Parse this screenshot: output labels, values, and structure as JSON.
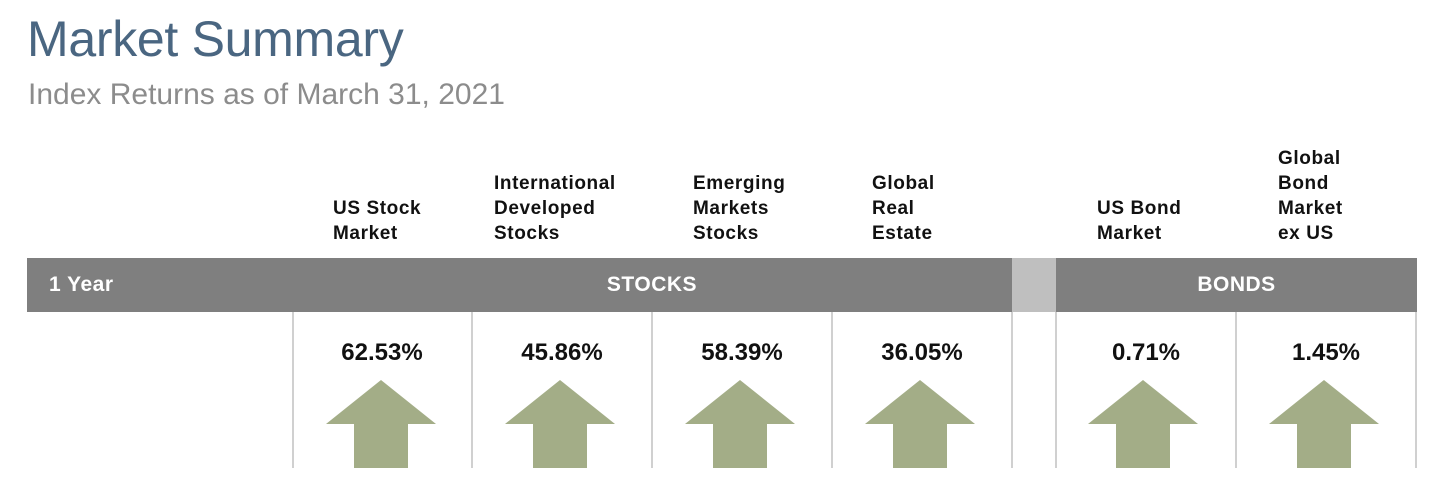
{
  "header": {
    "title": "Market Summary",
    "subtitle": "Index Returns as of March 31, 2021"
  },
  "band": {
    "period": "1 Year",
    "stocks_label": "STOCKS",
    "bonds_label": "BONDS"
  },
  "columns": [
    {
      "label_lines": [
        "US Stock",
        "Market"
      ],
      "value": "62.53%"
    },
    {
      "label_lines": [
        "International",
        "Developed",
        "Stocks"
      ],
      "value": "45.86%"
    },
    {
      "label_lines": [
        "Emerging",
        "Markets",
        "Stocks"
      ],
      "value": "58.39%"
    },
    {
      "label_lines": [
        "Global",
        "Real",
        "Estate"
      ],
      "value": "36.05%"
    },
    {
      "label_lines": [
        "US Bond",
        "Market"
      ],
      "value": "0.71%"
    },
    {
      "label_lines": [
        "Global",
        "Bond",
        "Market",
        "ex US"
      ],
      "value": "1.45%"
    }
  ],
  "colors": {
    "title": "#4a6681",
    "subtitle": "#8c8c8c",
    "band": "#7f7f7f",
    "band_gap": "#bfbfbf",
    "arrow": "#a3ad87",
    "divider": "#d0d0d0"
  },
  "icons": {
    "direction": "up-arrow-icon"
  },
  "chart_data": {
    "type": "table",
    "title": "Market Summary",
    "subtitle": "Index Returns as of March 31, 2021",
    "period": "1 Year",
    "groups": [
      {
        "name": "STOCKS",
        "categories": [
          "US Stock Market",
          "International Developed Stocks",
          "Emerging Markets Stocks",
          "Global Real Estate"
        ]
      },
      {
        "name": "BONDS",
        "categories": [
          "US Bond Market",
          "Global Bond Market ex US"
        ]
      }
    ],
    "categories": [
      "US Stock Market",
      "International Developed Stocks",
      "Emerging Markets Stocks",
      "Global Real Estate",
      "US Bond Market",
      "Global Bond Market ex US"
    ],
    "values": [
      62.53,
      45.86,
      58.39,
      36.05,
      0.71,
      1.45
    ],
    "unit": "%",
    "direction": [
      "up",
      "up",
      "up",
      "up",
      "up",
      "up"
    ]
  }
}
